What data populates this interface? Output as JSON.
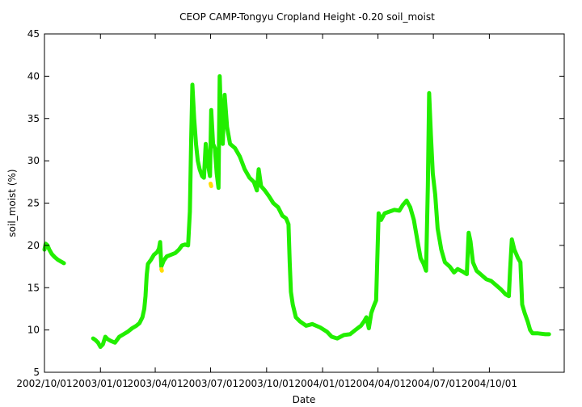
{
  "chart_data": {
    "type": "scatter",
    "title": "CEOP CAMP-Tongyu Cropland Height -0.20 soil_moist",
    "xlabel": "Date",
    "ylabel": "soil_moist (%)",
    "xlim": [
      "2002-10-01",
      "2005-02-01"
    ],
    "ylim": [
      5,
      45
    ],
    "grid": false,
    "legend": "none",
    "x_ticks": [
      {
        "date": "2002-10-01",
        "label": "2002/10/01"
      },
      {
        "date": "2003-01-01",
        "label": "2003/01/01"
      },
      {
        "date": "2003-04-01",
        "label": "2003/04/01"
      },
      {
        "date": "2003-07-01",
        "label": "2003/07/01"
      },
      {
        "date": "2003-10-01",
        "label": "2003/10/01"
      },
      {
        "date": "2004-01-01",
        "label": "2004/01/01"
      },
      {
        "date": "2004-04-01",
        "label": "2004/04/01"
      },
      {
        "date": "2004-07-01",
        "label": "2004/07/01"
      },
      {
        "date": "2004-10-01",
        "label": "2004/10/01"
      }
    ],
    "y_ticks": [
      5,
      10,
      15,
      20,
      25,
      30,
      35,
      40,
      45
    ],
    "series": [
      {
        "color": "#22ee00",
        "segments": [
          [
            [
              "2002-10-01",
              19.5
            ],
            [
              "2002-10-03",
              20.2
            ],
            [
              "2002-10-06",
              20.0
            ],
            [
              "2002-10-09",
              19.5
            ],
            [
              "2002-10-13",
              19.0
            ],
            [
              "2002-10-18",
              18.6
            ],
            [
              "2002-10-23",
              18.3
            ],
            [
              "2002-10-28",
              18.1
            ],
            [
              "2002-11-02",
              17.9
            ]
          ],
          [
            [
              "2002-12-20",
              9.0
            ],
            [
              "2002-12-24",
              8.8
            ],
            [
              "2002-12-28",
              8.5
            ],
            [
              "2003-01-01",
              8.0
            ],
            [
              "2003-01-05",
              8.3
            ],
            [
              "2003-01-09",
              9.2
            ],
            [
              "2003-01-13",
              8.9
            ],
            [
              "2003-01-18",
              8.7
            ],
            [
              "2003-01-25",
              8.5
            ],
            [
              "2003-02-01",
              9.2
            ],
            [
              "2003-02-08",
              9.5
            ],
            [
              "2003-02-15",
              9.8
            ],
            [
              "2003-02-22",
              10.2
            ],
            [
              "2003-03-01",
              10.5
            ],
            [
              "2003-03-06",
              10.8
            ],
            [
              "2003-03-11",
              11.5
            ],
            [
              "2003-03-14",
              12.5
            ],
            [
              "2003-03-16",
              14.0
            ],
            [
              "2003-03-18",
              16.5
            ],
            [
              "2003-03-20",
              17.8
            ],
            [
              "2003-03-25",
              18.3
            ],
            [
              "2003-03-30",
              18.9
            ],
            [
              "2003-04-04",
              19.2
            ],
            [
              "2003-04-07",
              19.6
            ],
            [
              "2003-04-09",
              20.4
            ],
            [
              "2003-04-11",
              17.5
            ],
            [
              "2003-04-15",
              18.2
            ],
            [
              "2003-04-20",
              18.7
            ],
            [
              "2003-04-27",
              18.9
            ],
            [
              "2003-05-04",
              19.1
            ],
            [
              "2003-05-10",
              19.5
            ],
            [
              "2003-05-15",
              20.0
            ],
            [
              "2003-05-20",
              20.1
            ],
            [
              "2003-05-25",
              20.0
            ],
            [
              "2003-05-28",
              24.0
            ],
            [
              "2003-05-30",
              32.5
            ],
            [
              "2003-06-01",
              39.0
            ],
            [
              "2003-06-04",
              35.0
            ],
            [
              "2003-06-07",
              32.0
            ],
            [
              "2003-06-10",
              30.0
            ],
            [
              "2003-06-13",
              29.0
            ],
            [
              "2003-06-17",
              28.2
            ],
            [
              "2003-06-20",
              28.0
            ],
            [
              "2003-06-23",
              32.0
            ],
            [
              "2003-06-26",
              30.0
            ],
            [
              "2003-06-28",
              29.0
            ],
            [
              "2003-06-30",
              28.2
            ],
            [
              "2003-07-02",
              36.0
            ],
            [
              "2003-07-05",
              32.0
            ],
            [
              "2003-07-08",
              31.5
            ],
            [
              "2003-07-11",
              28.5
            ],
            [
              "2003-07-14",
              26.8
            ],
            [
              "2003-07-16",
              40.0
            ],
            [
              "2003-07-19",
              33.0
            ],
            [
              "2003-07-21",
              32.0
            ],
            [
              "2003-07-24",
              37.8
            ],
            [
              "2003-07-28",
              34.0
            ],
            [
              "2003-08-02",
              32.0
            ],
            [
              "2003-08-10",
              31.5
            ],
            [
              "2003-08-18",
              30.5
            ],
            [
              "2003-08-26",
              29.0
            ],
            [
              "2003-09-03",
              28.0
            ],
            [
              "2003-09-10",
              27.5
            ],
            [
              "2003-09-15",
              26.5
            ],
            [
              "2003-09-18",
              29.0
            ],
            [
              "2003-09-22",
              27.0
            ],
            [
              "2003-09-28",
              26.5
            ],
            [
              "2003-10-05",
              25.8
            ],
            [
              "2003-10-12",
              25.0
            ],
            [
              "2003-10-20",
              24.5
            ],
            [
              "2003-10-27",
              23.5
            ],
            [
              "2003-11-02",
              23.2
            ],
            [
              "2003-11-06",
              22.5
            ],
            [
              "2003-11-08",
              18.0
            ],
            [
              "2003-11-10",
              14.5
            ],
            [
              "2003-11-13",
              13.0
            ],
            [
              "2003-11-18",
              11.5
            ],
            [
              "2003-11-25",
              11.0
            ],
            [
              "2003-12-05",
              10.5
            ],
            [
              "2003-12-15",
              10.7
            ],
            [
              "2003-12-28",
              10.3
            ],
            [
              "2004-01-08",
              9.8
            ],
            [
              "2004-01-16",
              9.2
            ],
            [
              "2004-01-25",
              9.0
            ],
            [
              "2004-02-05",
              9.4
            ],
            [
              "2004-02-15",
              9.5
            ],
            [
              "2004-02-24",
              10.0
            ],
            [
              "2004-03-04",
              10.5
            ],
            [
              "2004-03-09",
              11.0
            ],
            [
              "2004-03-13",
              11.5
            ],
            [
              "2004-03-17",
              10.2
            ],
            [
              "2004-03-21",
              12.0
            ],
            [
              "2004-03-25",
              12.8
            ],
            [
              "2004-03-29",
              13.5
            ],
            [
              "2004-04-02",
              23.8
            ],
            [
              "2004-04-06",
              23.0
            ],
            [
              "2004-04-12",
              23.8
            ],
            [
              "2004-04-20",
              24.0
            ],
            [
              "2004-04-28",
              24.2
            ],
            [
              "2004-05-06",
              24.1
            ],
            [
              "2004-05-12",
              24.8
            ],
            [
              "2004-05-18",
              25.3
            ],
            [
              "2004-05-24",
              24.5
            ],
            [
              "2004-05-30",
              23.0
            ],
            [
              "2004-06-05",
              20.5
            ],
            [
              "2004-06-10",
              18.5
            ],
            [
              "2004-06-15",
              17.8
            ],
            [
              "2004-06-19",
              17.0
            ],
            [
              "2004-06-22",
              27.0
            ],
            [
              "2004-06-24",
              38.0
            ],
            [
              "2004-06-27",
              33.0
            ],
            [
              "2004-06-30",
              28.5
            ],
            [
              "2004-07-04",
              26.0
            ],
            [
              "2004-07-08",
              22.0
            ],
            [
              "2004-07-14",
              19.5
            ],
            [
              "2004-07-20",
              18.0
            ],
            [
              "2004-07-28",
              17.5
            ],
            [
              "2004-08-04",
              16.8
            ],
            [
              "2004-08-10",
              17.2
            ],
            [
              "2004-08-18",
              16.9
            ],
            [
              "2004-08-25",
              16.6
            ],
            [
              "2004-08-28",
              21.5
            ],
            [
              "2004-08-31",
              20.5
            ],
            [
              "2004-09-04",
              18.0
            ],
            [
              "2004-09-10",
              17.0
            ],
            [
              "2004-09-18",
              16.5
            ],
            [
              "2004-09-26",
              16.0
            ],
            [
              "2004-10-04",
              15.8
            ],
            [
              "2004-10-12",
              15.3
            ],
            [
              "2004-10-20",
              14.8
            ],
            [
              "2004-10-28",
              14.2
            ],
            [
              "2004-11-02",
              14.0
            ],
            [
              "2004-11-04",
              17.0
            ],
            [
              "2004-11-07",
              20.7
            ],
            [
              "2004-11-11",
              19.5
            ],
            [
              "2004-11-17",
              18.5
            ],
            [
              "2004-11-21",
              18.0
            ],
            [
              "2004-11-24",
              13.0
            ],
            [
              "2004-11-28",
              12.0
            ],
            [
              "2004-12-03",
              11.0
            ],
            [
              "2004-12-07",
              10.0
            ],
            [
              "2004-12-11",
              9.6
            ],
            [
              "2004-12-20",
              9.6
            ],
            [
              "2005-01-01",
              9.5
            ],
            [
              "2005-01-07",
              9.5
            ]
          ]
        ]
      },
      {
        "color": "#ffdd00",
        "segments": [
          [
            [
              "2003-04-11",
              17.2
            ],
            [
              "2003-04-12",
              17.0
            ]
          ],
          [
            [
              "2003-07-01",
              27.3
            ],
            [
              "2003-07-02",
              27.0
            ]
          ]
        ]
      }
    ]
  }
}
